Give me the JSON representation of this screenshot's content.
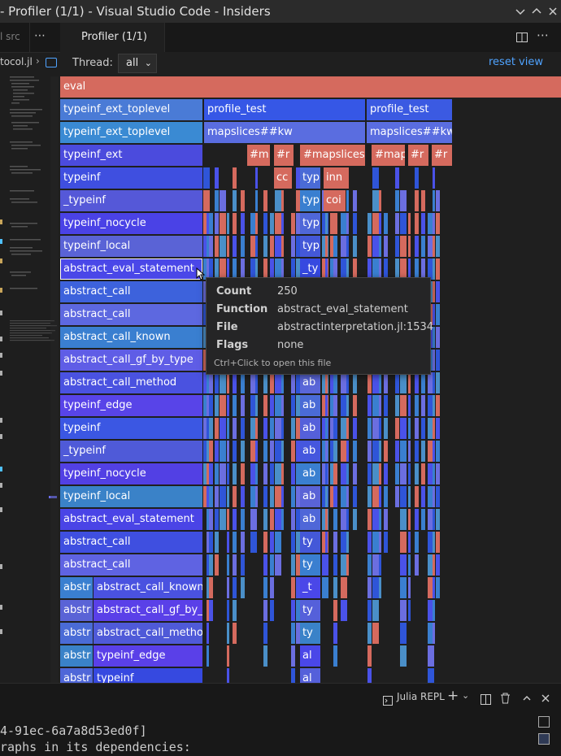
{
  "window": {
    "title": "- Profiler (1/1) - Visual Studio Code - Insiders"
  },
  "left_editor": {
    "tab_text": "l src",
    "more_icon": "ellipsis-icon",
    "breadcrumb": "tocol.jl"
  },
  "tabs": {
    "active_label": "Profiler (1/1)"
  },
  "toolbar": {
    "thread_label": "Thread:",
    "thread_value": "all",
    "reset_label": "reset view"
  },
  "flame": {
    "colors": [
      "#d56a5e",
      "#4a52e8",
      "#3a7fd0",
      "#6b6ee0",
      "#2f55d8",
      "#4a8fc8"
    ],
    "frames": [
      {
        "label": "eval",
        "row": 0,
        "start": 0,
        "end": 616,
        "color": "#d56a5e"
      },
      {
        "label": "typeinf_ext_toplevel",
        "row": 1,
        "start": 0,
        "end": 175,
        "color": "#4a7bd6"
      },
      {
        "label": "profile_test",
        "row": 1,
        "start": 177,
        "end": 375,
        "color": "#3657e6"
      },
      {
        "label": "profile_test",
        "row": 1,
        "start": 377,
        "end": 482,
        "color": "#3b5ae2"
      },
      {
        "label": "typeinf_ext_toplevel",
        "row": 2,
        "start": 0,
        "end": 175,
        "color": "#3a8ad3"
      },
      {
        "label": "mapslices##kw",
        "row": 2,
        "start": 177,
        "end": 375,
        "color": "#5a6de0"
      },
      {
        "label": "mapslices##kw",
        "row": 2,
        "start": 377,
        "end": 482,
        "color": "#5a6de0"
      },
      {
        "label": "typeinf_ext",
        "row": 3,
        "start": 0,
        "end": 175,
        "color": "#4b4bdd"
      },
      {
        "label": "#m",
        "row": 3,
        "start": 230,
        "end": 258,
        "color": "#d56a5e"
      },
      {
        "label": "#r",
        "row": 3,
        "start": 263,
        "end": 287,
        "color": "#d56a5e"
      },
      {
        "label": "#mapslices#",
        "row": 3,
        "start": 295,
        "end": 375,
        "color": "#d56a5e"
      },
      {
        "label": "#map",
        "row": 3,
        "start": 383,
        "end": 424,
        "color": "#d56a5e"
      },
      {
        "label": "#r",
        "row": 3,
        "start": 428,
        "end": 453,
        "color": "#d56a5e"
      },
      {
        "label": "#r",
        "row": 3,
        "start": 457,
        "end": 482,
        "color": "#d56a5e"
      },
      {
        "label": "typeinf",
        "row": 4,
        "start": 0,
        "end": 175,
        "color": "#3f4fe0"
      },
      {
        "label": "cc",
        "row": 4,
        "start": 263,
        "end": 285,
        "color": "#d56a5e"
      },
      {
        "label": "typ",
        "row": 4,
        "start": 295,
        "end": 320,
        "color": "#4a6bd6"
      },
      {
        "label": "inn",
        "row": 4,
        "start": 324,
        "end": 352,
        "color": "#d56a5e"
      },
      {
        "label": "_typeinf",
        "row": 5,
        "start": 0,
        "end": 175,
        "color": "#5558d8"
      },
      {
        "label": "typ",
        "row": 5,
        "start": 295,
        "end": 320,
        "color": "#3a7fd0"
      },
      {
        "label": "coi",
        "row": 5,
        "start": 324,
        "end": 351,
        "color": "#d56a5e"
      },
      {
        "label": "typeinf_nocycle",
        "row": 6,
        "start": 0,
        "end": 175,
        "color": "#4a42e6"
      },
      {
        "label": "typ",
        "row": 6,
        "start": 295,
        "end": 320,
        "color": "#4f67d8"
      },
      {
        "label": "typeinf_local",
        "row": 7,
        "start": 0,
        "end": 175,
        "color": "#5a63d6"
      },
      {
        "label": "typ",
        "row": 7,
        "start": 295,
        "end": 320,
        "color": "#4458d8"
      },
      {
        "label": "abstract_eval_statement",
        "row": 8,
        "start": 0,
        "end": 175,
        "color": "#4a47e8",
        "selected": true
      },
      {
        "label": "_ty",
        "row": 8,
        "start": 295,
        "end": 320,
        "color": "#3649e0"
      },
      {
        "label": "abstract_call",
        "row": 9,
        "start": 0,
        "end": 175,
        "color": "#3d62dc"
      },
      {
        "label": "abstract_call",
        "row": 10,
        "start": 0,
        "end": 175,
        "color": "#5d68e0"
      },
      {
        "label": "abstract_call_known",
        "row": 11,
        "start": 0,
        "end": 175,
        "color": "#3a7fd0"
      },
      {
        "label": "abstract_call_gf_by_type",
        "row": 12,
        "start": 0,
        "end": 175,
        "color": "#5f5de6"
      },
      {
        "label": "abstract_call_method",
        "row": 13,
        "start": 0,
        "end": 175,
        "color": "#4a52e0"
      },
      {
        "label": "ab",
        "row": 13,
        "start": 295,
        "end": 320,
        "color": "#5a66d8"
      },
      {
        "label": "typeinf_edge",
        "row": 14,
        "start": 0,
        "end": 175,
        "color": "#5844e8"
      },
      {
        "label": "ab",
        "row": 14,
        "start": 295,
        "end": 320,
        "color": "#4a6bd6"
      },
      {
        "label": "typeinf",
        "row": 15,
        "start": 0,
        "end": 175,
        "color": "#3b57e3"
      },
      {
        "label": "ab",
        "row": 15,
        "start": 295,
        "end": 320,
        "color": "#5560da"
      },
      {
        "label": "_typeinf",
        "row": 16,
        "start": 0,
        "end": 175,
        "color": "#4f5ad8"
      },
      {
        "label": "ab",
        "row": 16,
        "start": 295,
        "end": 320,
        "color": "#4557de"
      },
      {
        "label": "typeinf_nocycle",
        "row": 17,
        "start": 0,
        "end": 175,
        "color": "#5240e4"
      },
      {
        "label": "ab",
        "row": 17,
        "start": 295,
        "end": 320,
        "color": "#3a7fd0"
      },
      {
        "label": "typeinf_local",
        "row": 18,
        "start": 0,
        "end": 175,
        "color": "#3a82c8"
      },
      {
        "label": "ab",
        "row": 18,
        "start": 295,
        "end": 320,
        "color": "#5a63d6"
      },
      {
        "label": "abstract_eval_statement",
        "row": 19,
        "start": 0,
        "end": 175,
        "color": "#4a44e6"
      },
      {
        "label": "ab",
        "row": 19,
        "start": 295,
        "end": 320,
        "color": "#4f67d8"
      },
      {
        "label": "abstract_call",
        "row": 20,
        "start": 0,
        "end": 175,
        "color": "#3f4fe0"
      },
      {
        "label": "ty",
        "row": 20,
        "start": 295,
        "end": 320,
        "color": "#4458d8"
      },
      {
        "label": "abstract_call",
        "row": 21,
        "start": 0,
        "end": 175,
        "color": "#5f63e2"
      },
      {
        "label": "ty",
        "row": 21,
        "start": 295,
        "end": 320,
        "color": "#3a7fd0"
      },
      {
        "label": "abstr",
        "row": 22,
        "start": 0,
        "end": 40,
        "color": "#3a7fd0"
      },
      {
        "label": "abstract_call_known",
        "row": 22,
        "start": 41,
        "end": 175,
        "color": "#4a52e0"
      },
      {
        "label": "_t",
        "row": 22,
        "start": 295,
        "end": 320,
        "color": "#4a47e8"
      },
      {
        "label": "abstr",
        "row": 23,
        "start": 0,
        "end": 40,
        "color": "#5a63d6"
      },
      {
        "label": "abstract_call_gf_by_",
        "row": 23,
        "start": 41,
        "end": 175,
        "color": "#5a40e8"
      },
      {
        "label": "ty",
        "row": 23,
        "start": 295,
        "end": 320,
        "color": "#5560da"
      },
      {
        "label": "abstr",
        "row": 24,
        "start": 0,
        "end": 40,
        "color": "#4a6bd6"
      },
      {
        "label": "abstract_call_metho",
        "row": 24,
        "start": 41,
        "end": 175,
        "color": "#4f5ad8"
      },
      {
        "label": "ty",
        "row": 24,
        "start": 295,
        "end": 320,
        "color": "#3a82c8"
      },
      {
        "label": "abstr",
        "row": 25,
        "start": 0,
        "end": 40,
        "color": "#3a82c8"
      },
      {
        "label": "typeinf_edge",
        "row": 25,
        "start": 41,
        "end": 175,
        "color": "#5a40e8"
      },
      {
        "label": "al",
        "row": 25,
        "start": 295,
        "end": 320,
        "color": "#4a47e8"
      },
      {
        "label": "abstr",
        "row": 26,
        "start": 0,
        "end": 40,
        "color": "#4f67d8"
      },
      {
        "label": "typeinf",
        "row": 26,
        "start": 41,
        "end": 175,
        "color": "#3649e0"
      },
      {
        "label": "al",
        "row": 26,
        "start": 295,
        "end": 320,
        "color": "#5560da"
      }
    ]
  },
  "tooltip": {
    "count_key": "Count",
    "count_val": "250",
    "function_key": "Function",
    "function_val": "abstract_eval_statement",
    "file_key": "File",
    "file_val": "abstractinterpretation.jl:1534",
    "flags_key": "Flags",
    "flags_val": "none",
    "hint": "Ctrl+Click to open this file"
  },
  "panel": {
    "repl_label": "Julia REPL",
    "terminal_lines": [
      "4-91ec-6a7a8d53ed0f]",
      "raphs in its dependencies:"
    ]
  }
}
